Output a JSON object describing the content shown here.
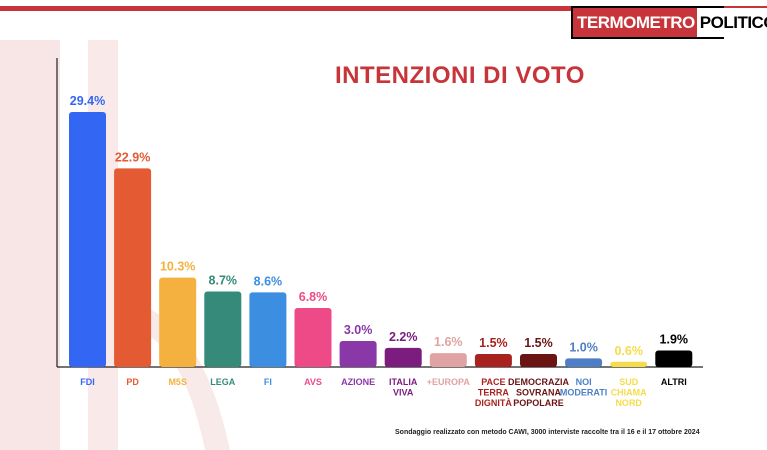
{
  "brand": {
    "logo_part1": "TERMOMETRO",
    "logo_part2": "POLITICO",
    "accent": "#c7343a"
  },
  "chart_data": {
    "type": "bar",
    "title": "INTENZIONI DI VOTO",
    "categories": [
      "FDI",
      "PD",
      "M5S",
      "LEGA",
      "FI",
      "AVS",
      "AZIONE",
      "ITALIA VIVA",
      "+EUROPA",
      "PACE TERRA DIGNITÀ",
      "DEMOCRAZIA SOVRANA POPOLARE",
      "NOI MODERATI",
      "SUD CHIAMA NORD",
      "ALTRI"
    ],
    "category_lines": [
      [
        "FDI"
      ],
      [
        "PD"
      ],
      [
        "M5S"
      ],
      [
        "LEGA"
      ],
      [
        "FI"
      ],
      [
        "AVS"
      ],
      [
        "AZIONE"
      ],
      [
        "ITALIA",
        "VIVA"
      ],
      [
        "+EUROPA"
      ],
      [
        "PACE",
        "TERRA",
        "DIGNITÀ"
      ],
      [
        "DEMOCRAZIA",
        "SOVRANA",
        "POPOLARE"
      ],
      [
        "NOI",
        "MODERATI"
      ],
      [
        "SUD",
        "CHIAMA",
        "NORD"
      ],
      [
        "ALTRI"
      ]
    ],
    "values": [
      29.4,
      22.9,
      10.3,
      8.7,
      8.6,
      6.8,
      3.0,
      2.2,
      1.6,
      1.5,
      1.5,
      1.0,
      0.6,
      1.9
    ],
    "value_labels": [
      "29.4%",
      "22.9%",
      "10.3%",
      "8.7%",
      "8.6%",
      "6.8%",
      "3.0%",
      "2.2%",
      "1.6%",
      "1.5%",
      "1.5%",
      "1.0%",
      "0.6%",
      "1.9%"
    ],
    "colors": [
      "#3366f2",
      "#e35a33",
      "#f4b13f",
      "#358a79",
      "#3c8fe0",
      "#ee4a88",
      "#8a38a8",
      "#7a1d7e",
      "#e0a3a3",
      "#a8231f",
      "#6a1414",
      "#4e7fc6",
      "#f6dc4b",
      "#000000"
    ],
    "label_colors": [
      "#3366f2",
      "#e35a33",
      "#f4b13f",
      "#358a79",
      "#3c8fe0",
      "#ee4a88",
      "#8a38a8",
      "#7a1d7e",
      "#e0a3a3",
      "#a8231f",
      "#6a1414",
      "#4e7fc6",
      "#f6dc4b",
      "#000000"
    ],
    "ylim": [
      0,
      30
    ],
    "grid": false,
    "xlabel": "",
    "ylabel": ""
  },
  "footnote": "Sondaggio realizzato con metodo CAWI, 3000 interviste raccolte tra il 16 e il 17 ottobre 2024"
}
